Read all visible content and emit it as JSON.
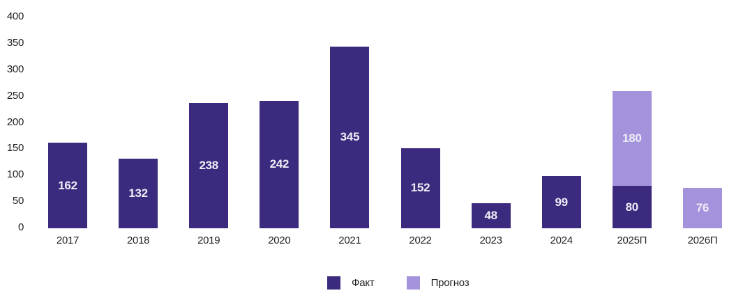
{
  "chart_data": {
    "type": "bar",
    "title": "",
    "categories": [
      "2017",
      "2018",
      "2019",
      "2020",
      "2021",
      "2022",
      "2023",
      "2024",
      "2025П",
      "2026П"
    ],
    "series": [
      {
        "name": "Факт",
        "color": "#3B2A7D",
        "values": [
          162,
          132,
          238,
          242,
          345,
          152,
          48,
          99,
          80,
          null
        ]
      },
      {
        "name": "Прогноз",
        "color": "#A492DD",
        "values": [
          null,
          null,
          null,
          null,
          null,
          null,
          null,
          null,
          180,
          76
        ]
      }
    ],
    "stacked": true,
    "ylim": [
      0,
      400
    ],
    "yticks": [
      0,
      50,
      100,
      150,
      200,
      250,
      300,
      350,
      400
    ],
    "grid": false,
    "axis_lines": false,
    "bar_label_color": "#EFEDF6",
    "axis_text_color": "#1F1F1F",
    "legend_position": "bottom"
  },
  "legend": {
    "items": [
      {
        "label": "Факт",
        "color": "#3B2A7D"
      },
      {
        "label": "Прогноз",
        "color": "#A492DD"
      }
    ]
  }
}
